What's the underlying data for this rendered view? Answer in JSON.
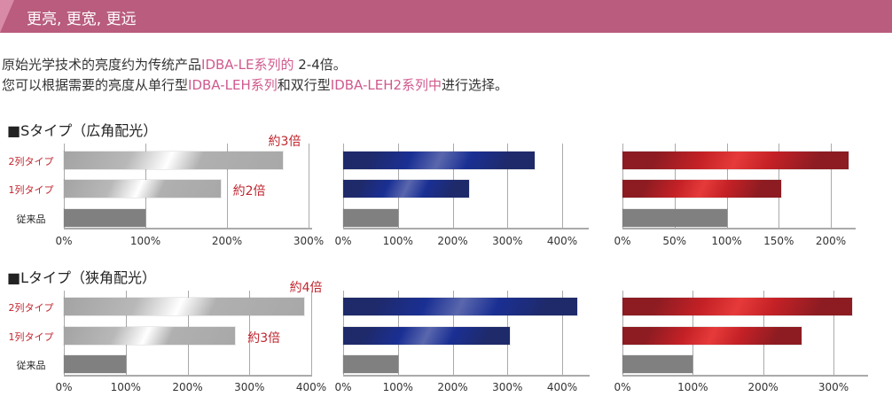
{
  "banner": {
    "title": "更亮, 更宽, 更远"
  },
  "intro": {
    "line1": [
      {
        "t": "原始光学技术的亮度约为传统产品",
        "c": ""
      },
      {
        "t": "IDBA-LE系列的",
        "c": "pk"
      },
      {
        "t": " 2-4倍。",
        "c": ""
      }
    ],
    "line2": [
      {
        "t": "您可以根据需要的亮度从单行型",
        "c": ""
      },
      {
        "t": "IDBA-LEH系列",
        "c": "pk"
      },
      {
        "t": "和双行型",
        "c": ""
      },
      {
        "t": "IDBA-LEH2系列中",
        "c": "pk"
      },
      {
        "t": "进行选择。",
        "c": ""
      }
    ]
  },
  "sections": [
    {
      "title": "■Sタイプ（広角配光）"
    },
    {
      "title": "■Lタイプ（狭角配光）"
    }
  ],
  "row_labels": [
    {
      "text": "2列タイプ",
      "color": "#c0262f"
    },
    {
      "text": "1列タイプ",
      "color": "#c0262f"
    },
    {
      "text": "従来品",
      "color": "#222"
    }
  ],
  "colors": {
    "silver": "#a8a8a8",
    "blue": "#1f2a6b",
    "red": "#8c1c22",
    "baseline": "#808080",
    "accent": "#b95c7e"
  },
  "chart_data": [
    {
      "type": "bar",
      "section": 0,
      "style": "silver",
      "categories": [
        "2列タイプ",
        "1列タイプ",
        "従来品"
      ],
      "values": [
        268,
        192,
        100
      ],
      "ticks": [
        "0%",
        "100%",
        "200%",
        "300%"
      ],
      "tick_values": [
        0,
        100,
        200,
        300
      ],
      "xlim": [
        0,
        300
      ],
      "annotations": [
        {
          "text": "約3倍",
          "row": 0
        },
        {
          "text": "約2倍",
          "row": 1
        }
      ]
    },
    {
      "type": "bar",
      "section": 0,
      "style": "blue",
      "categories": [
        "2列タイプ",
        "1列タイプ",
        "従来品"
      ],
      "values": [
        350,
        230,
        100
      ],
      "ticks": [
        "0%",
        "100%",
        "200%",
        "300%",
        "400%"
      ],
      "tick_values": [
        0,
        100,
        200,
        300,
        400
      ],
      "xlim": [
        0,
        400
      ]
    },
    {
      "type": "bar",
      "section": 0,
      "style": "red",
      "categories": [
        "2列タイプ",
        "1列タイプ",
        "従来品"
      ],
      "values": [
        217,
        152,
        100
      ],
      "ticks": [
        "0%",
        "50%",
        "100%",
        "150%",
        "200%"
      ],
      "tick_values": [
        0,
        50,
        100,
        150,
        200
      ],
      "xlim": [
        0,
        225
      ]
    },
    {
      "type": "bar",
      "section": 1,
      "style": "silver",
      "categories": [
        "2列タイプ",
        "1列タイプ",
        "従来品"
      ],
      "values": [
        388,
        277,
        100
      ],
      "ticks": [
        "0%",
        "100%",
        "200%",
        "300%",
        "400%"
      ],
      "tick_values": [
        0,
        100,
        200,
        300,
        400
      ],
      "xlim": [
        0,
        400
      ],
      "annotations": [
        {
          "text": "約4倍",
          "row": 0
        },
        {
          "text": "約3倍",
          "row": 1
        }
      ]
    },
    {
      "type": "bar",
      "section": 1,
      "style": "blue",
      "categories": [
        "2列タイプ",
        "1列タイプ",
        "従来品"
      ],
      "values": [
        427,
        305,
        100
      ],
      "ticks": [
        "0%",
        "100%",
        "200%",
        "300%",
        "400%"
      ],
      "tick_values": [
        0,
        100,
        200,
        300,
        400
      ],
      "xlim": [
        0,
        450
      ]
    },
    {
      "type": "bar",
      "section": 1,
      "style": "red",
      "categories": [
        "2列タイプ",
        "1列タイプ",
        "従来品"
      ],
      "values": [
        326,
        254,
        100
      ],
      "ticks": [
        "0%",
        "100%",
        "200%",
        "300%"
      ],
      "tick_values": [
        0,
        100,
        200,
        300
      ],
      "xlim": [
        0,
        350
      ]
    }
  ]
}
